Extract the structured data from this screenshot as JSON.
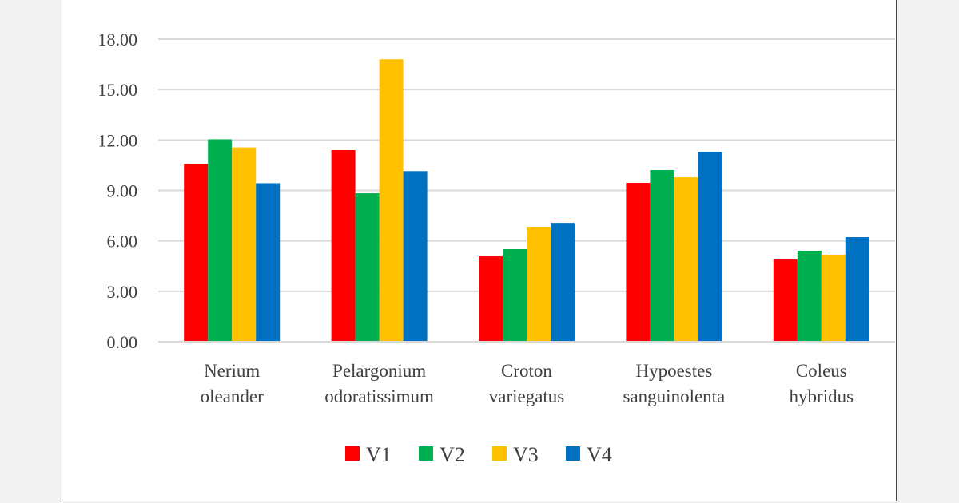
{
  "chart_data": {
    "type": "bar",
    "title": "",
    "xlabel": "",
    "ylabel": "",
    "categories": [
      [
        "Nerium",
        "oleander"
      ],
      [
        "Pelargonium",
        "odoratissimum"
      ],
      [
        "Croton",
        "variegatus"
      ],
      [
        "Hypoestes",
        "sanguinolenta"
      ],
      [
        "Coleus",
        "hybridus"
      ]
    ],
    "series": [
      {
        "name": "V1",
        "color": "#ff0000",
        "values": [
          10.57,
          11.4,
          5.08,
          9.45,
          4.89
        ]
      },
      {
        "name": "V2",
        "color": "#00b050",
        "values": [
          12.04,
          8.83,
          5.51,
          10.21,
          5.41
        ]
      },
      {
        "name": "V3",
        "color": "#ffc000",
        "values": [
          11.56,
          16.8,
          6.84,
          9.78,
          5.18
        ]
      },
      {
        "name": "V4",
        "color": "#0070c0",
        "values": [
          9.43,
          10.15,
          7.07,
          11.3,
          6.22
        ]
      }
    ],
    "ylim": [
      0,
      18
    ],
    "yticks": [
      "0.00",
      "3.00",
      "6.00",
      "9.00",
      "12.00",
      "15.00",
      "18.00"
    ],
    "grid": true,
    "legend": "bottom"
  }
}
